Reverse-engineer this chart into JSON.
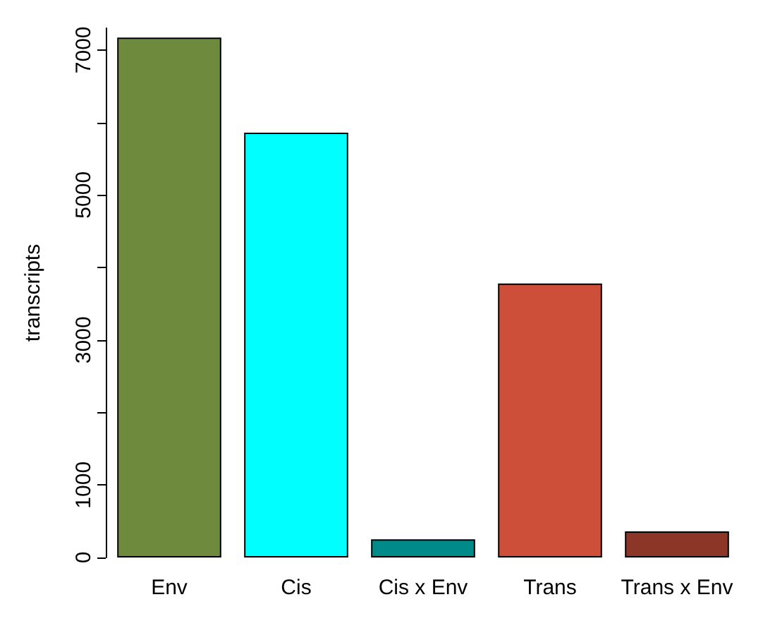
{
  "chart_data": {
    "type": "bar",
    "ylabel": "transcripts",
    "categories": [
      "Env",
      "Cis",
      "Cis x Env",
      "Trans",
      "Trans x Env"
    ],
    "values": [
      7170,
      5860,
      250,
      3780,
      360
    ],
    "colors": [
      "#6e8b3d",
      "#00ffff",
      "#008b8b",
      "#cd4f39",
      "#8b3626"
    ],
    "ylim": [
      0,
      7300
    ],
    "yticks": [
      0,
      1000,
      {
        "value": 2000,
        "label": null
      },
      3000,
      {
        "value": 4000,
        "label": null
      },
      5000,
      {
        "value": 6000,
        "label": null
      },
      7000
    ],
    "grid": false
  }
}
